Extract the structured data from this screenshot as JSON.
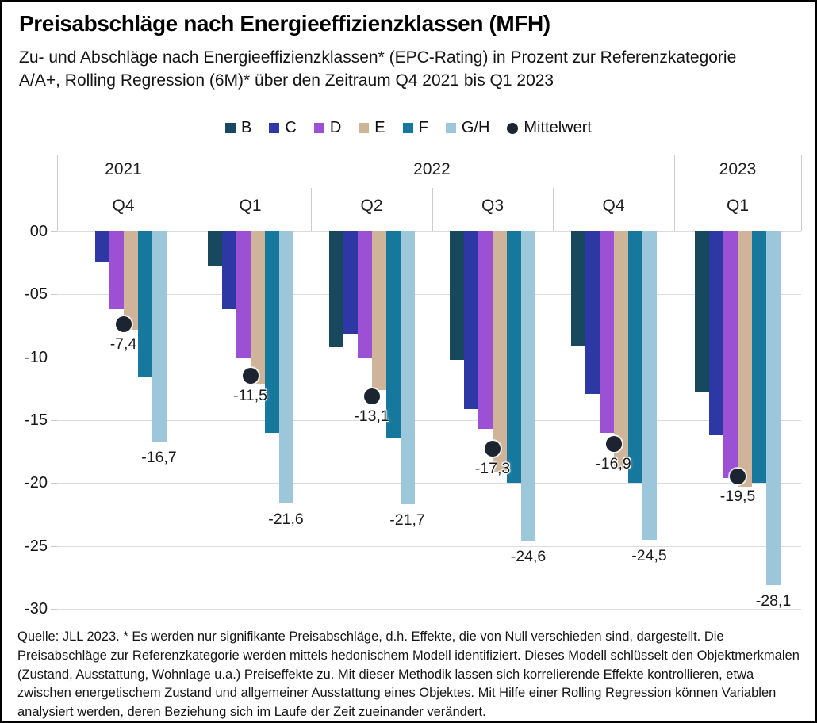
{
  "title": "Preisabschläge nach Energieeffizienzklassen (MFH)",
  "subtitle": "Zu- und Abschläge nach Energieeffizienzklassen* (EPC-Rating) in Prozent zur Referenzkategorie A/A+, Rolling Regression (6M)* über den Zeitraum Q4 2021 bis Q1 2023",
  "footer": "Quelle: JLL 2023. * Es werden nur signifikante Preisabschläge, d.h. Effekte, die von Null verschieden sind, dargestellt. Die Preisabschläge zur Referenzkategorie werden mittels hedonischem Modell identifiziert. Dieses Modell schlüsselt den Objektmerkmalen (Zustand, Ausstattung, Wohnlage u.a.) Preiseffekte zu. Mit dieser Methodik lassen sich korrelierende Effekte kontrollieren, etwa zwischen energetischem Zustand und allgemeiner Ausstattung eines Objektes. Mit Hilfe einer Rolling Regression können Variablen analysiert werden, deren Beziehung sich im Laufe der Zeit zueinander verändert.",
  "chart_data": {
    "type": "bar",
    "title": "Preisabschläge nach Energieeffizienzklassen (MFH)",
    "unit": "percent",
    "grid": true,
    "legend_position": "top",
    "ylim": [
      -30,
      0
    ],
    "yticks": [
      "00",
      "-05",
      "-10",
      "-15",
      "-20",
      "-25",
      "-30"
    ],
    "categories": [
      "B",
      "C",
      "D",
      "E",
      "F",
      "G/H"
    ],
    "legend": [
      {
        "label": "B",
        "shape": "square",
        "color": "#17485e"
      },
      {
        "label": "C",
        "shape": "square",
        "color": "#2d38a4"
      },
      {
        "label": "D",
        "shape": "square",
        "color": "#9c50d4"
      },
      {
        "label": "E",
        "shape": "square",
        "color": "#cfb49a"
      },
      {
        "label": "F",
        "shape": "square",
        "color": "#17789e"
      },
      {
        "label": "G/H",
        "shape": "square",
        "color": "#9cc7da"
      },
      {
        "label": "Mittelwert",
        "shape": "dot",
        "color": "#1b2430"
      }
    ],
    "colors": {
      "B": "#17485e",
      "C": "#2d38a4",
      "D": "#9c50d4",
      "E": "#cfb49a",
      "F": "#17789e",
      "G/H": "#9cc7da",
      "mittelwert": "#1b2430"
    },
    "year_spans": [
      {
        "label": "2021",
        "cols": 1
      },
      {
        "label": "2022",
        "cols": 4
      },
      {
        "label": "2023",
        "cols": 1
      }
    ],
    "groups": [
      {
        "year": "2021",
        "quarter": "Q4",
        "values": {
          "B": null,
          "C": -2.4,
          "D": -6.2,
          "E": -7.8,
          "F": -11.6,
          "G/H": -16.7
        },
        "mean": -7.4,
        "mean_label": "-7,4",
        "gh_label": "-16,7"
      },
      {
        "year": "2022",
        "quarter": "Q1",
        "values": {
          "B": -2.7,
          "C": -6.2,
          "D": -10.0,
          "E": -12.1,
          "F": -16.0,
          "G/H": -21.6
        },
        "mean": -11.5,
        "mean_label": "-11,5",
        "gh_label": "-21,6"
      },
      {
        "year": "2022",
        "quarter": "Q2",
        "values": {
          "B": -9.2,
          "C": -8.1,
          "D": -10.1,
          "E": -12.6,
          "F": -16.4,
          "G/H": -21.7
        },
        "mean": -13.1,
        "mean_label": "-13,1",
        "gh_label": "-21,7"
      },
      {
        "year": "2022",
        "quarter": "Q3",
        "values": {
          "B": -10.2,
          "C": -14.1,
          "D": -15.7,
          "E": -19.1,
          "F": -20.0,
          "G/H": -24.6
        },
        "mean": -17.3,
        "mean_label": "-17,3",
        "gh_label": "-24,6"
      },
      {
        "year": "2022",
        "quarter": "Q4",
        "values": {
          "B": -9.1,
          "C": -12.9,
          "D": -16.0,
          "E": -18.9,
          "F": -20.0,
          "G/H": -24.5
        },
        "mean": -16.9,
        "mean_label": "-16,9",
        "gh_label": "-24,5"
      },
      {
        "year": "2023",
        "quarter": "Q1",
        "values": {
          "B": -12.7,
          "C": -16.2,
          "D": -19.6,
          "E": -20.3,
          "F": -20.0,
          "G/H": -28.1
        },
        "mean": -19.5,
        "mean_label": "-19,5",
        "gh_label": "-28,1"
      }
    ]
  }
}
